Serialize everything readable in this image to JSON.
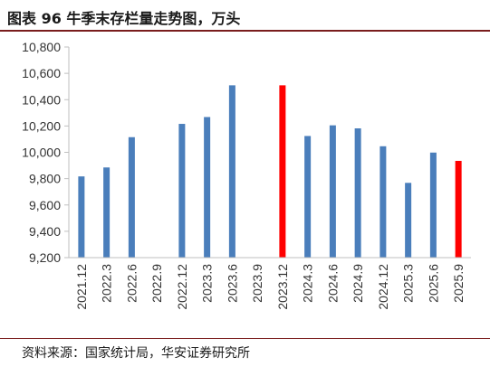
{
  "figure": {
    "title": "图表 96  牛季末存栏量走势图，万头",
    "source": "资料来源：国家统计局，华安证券研究所"
  },
  "colors": {
    "default_bar": "#4a7ebb",
    "highlight_bar": "#ff0000",
    "axis": "#bfbfbf",
    "rule": "#7a1d1d"
  },
  "chart_data": {
    "type": "bar",
    "title": "",
    "xlabel": "",
    "ylabel": "",
    "ylim": [
      9200,
      10800
    ],
    "yticks": [
      "9,200",
      "9,400",
      "9,600",
      "9,800",
      "10,000",
      "10,200",
      "10,400",
      "10,600",
      "10,800"
    ],
    "yticks_values": [
      9200,
      9400,
      9600,
      9800,
      10000,
      10200,
      10400,
      10600,
      10800
    ],
    "grid": false,
    "legend": "none",
    "categories": [
      "2021.12",
      "2022.3",
      "2022.6",
      "2022.9",
      "2022.12",
      "2023.3",
      "2023.6",
      "2023.9",
      "2023.12",
      "2024.3",
      "2024.6",
      "2024.9",
      "2024.12",
      "2025.3",
      "2025.6",
      "2025.9"
    ],
    "values": [
      9817,
      9885,
      10115,
      null,
      10216,
      10268,
      10509,
      null,
      10509,
      10124,
      10205,
      10182,
      10046,
      9768,
      9998,
      9935
    ],
    "highlight": [
      false,
      false,
      false,
      false,
      false,
      false,
      false,
      false,
      true,
      false,
      false,
      false,
      false,
      false,
      false,
      true
    ]
  }
}
